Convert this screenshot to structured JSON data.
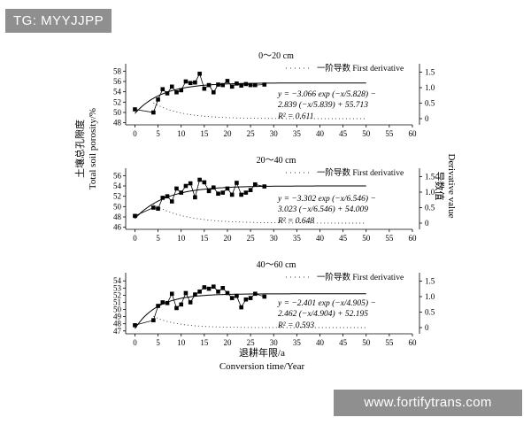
{
  "top_badge": "TG: MYYJJPP",
  "bottom_badge": "www.fortifytrans.com",
  "ylabel_zh": "土壤总孔隙度",
  "ylabel_en": "Total soil porosity/%",
  "y2label_zh": "导数值",
  "y2label_en": "Derivative value",
  "xlabel_zh": "退耕年限/a",
  "xlabel_en": "Conversion time/Year",
  "legend_label": "一阶导数 First derivative",
  "chart_data": [
    {
      "type": "scatter",
      "title": "0～20 cm",
      "xlim": [
        -2,
        60
      ],
      "xticks": [
        0,
        5,
        10,
        15,
        20,
        25,
        30,
        35,
        40,
        45,
        50,
        55,
        60
      ],
      "ylim": [
        47.6,
        58.4
      ],
      "yticks": [
        48,
        50,
        52,
        54,
        56,
        58
      ],
      "y2lim": [
        -0.2,
        1.6
      ],
      "y2ticks": [
        0,
        0.5,
        1.0,
        1.5
      ],
      "y2ticklabels": [
        "0",
        "0.5",
        "1.0",
        "1.5"
      ],
      "points": {
        "x": [
          0,
          4,
          5,
          6,
          7,
          8,
          9,
          10,
          11,
          12,
          13,
          14,
          15,
          16,
          17,
          18,
          19,
          20,
          21,
          22,
          23,
          24,
          25,
          26,
          28
        ],
        "y": [
          50.6,
          50.0,
          52.5,
          54.5,
          53.7,
          55.0,
          53.9,
          54.3,
          56.0,
          55.7,
          55.8,
          57.5,
          54.6,
          55.3,
          53.9,
          55.4,
          55.3,
          56.1,
          55.0,
          55.6,
          55.2,
          55.5,
          55.3,
          55.3,
          55.4
        ]
      },
      "fit": {
        "a": -3.066,
        "t1": 5.828,
        "b": -2.839,
        "t2": 5.839,
        "c": 55.713,
        "x_end": 50
      },
      "derivative": {
        "x": [
          4,
          50
        ],
        "scale": 6.0
      },
      "equation": [
        "y = −3.066 exp (−x/5.828) −",
        "2.839 (−x/5.839) + 55.713"
      ],
      "r2": "R² = 0.611"
    },
    {
      "type": "scatter",
      "title": "20～40 cm",
      "xlim": [
        -2,
        60
      ],
      "xticks": [
        0,
        5,
        10,
        15,
        20,
        25,
        30,
        35,
        40,
        45,
        50,
        55,
        60
      ],
      "ylim": [
        45.6,
        56.4
      ],
      "yticks": [
        46,
        48,
        50,
        52,
        54,
        56
      ],
      "y2lim": [
        -0.2,
        1.6
      ],
      "y2ticks": [
        0,
        0.5,
        1.0,
        1.5
      ],
      "y2ticklabels": [
        "0",
        "0.5",
        "1.0",
        "1.5"
      ],
      "points": {
        "x": [
          0,
          4,
          5,
          6,
          7,
          8,
          9,
          10,
          11,
          12,
          13,
          14,
          15,
          16,
          17,
          18,
          19,
          20,
          21,
          22,
          23,
          24,
          25,
          26,
          28
        ],
        "y": [
          48.2,
          49.8,
          49.6,
          51.7,
          52.0,
          51.0,
          53.5,
          52.7,
          54.0,
          54.5,
          51.8,
          55.2,
          54.7,
          53.0,
          53.7,
          52.5,
          52.7,
          53.5,
          52.3,
          54.6,
          52.3,
          52.7,
          53.2,
          54.3,
          53.9
        ]
      },
      "fit": {
        "a": -3.302,
        "t1": 6.546,
        "b": -3.023,
        "t2": 6.546,
        "c": 54.009,
        "x_end": 50
      },
      "derivative": {
        "x": [
          4,
          50
        ],
        "scale": 7.0
      },
      "equation": [
        "y = −3.302 exp (−x/6.546) −",
        "3.023 (−x/6.546) + 54.009"
      ],
      "r2": "R² = 0.648"
    },
    {
      "type": "scatter",
      "title": "40～60 cm",
      "xlim": [
        -2,
        60
      ],
      "xticks": [
        0,
        5,
        10,
        15,
        20,
        25,
        30,
        35,
        40,
        45,
        50,
        55,
        60
      ],
      "ylim": [
        46.6,
        54.4
      ],
      "yticks": [
        47,
        48,
        49,
        50,
        51,
        52,
        53,
        54
      ],
      "y2lim": [
        -0.2,
        1.6
      ],
      "y2ticks": [
        0,
        0.5,
        1.0,
        1.5
      ],
      "y2ticklabels": [
        "0",
        "0.5",
        "1.0",
        "1.5"
      ],
      "points": {
        "x": [
          0,
          4,
          5,
          6,
          7,
          8,
          9,
          10,
          11,
          12,
          13,
          14,
          15,
          16,
          17,
          18,
          19,
          20,
          21,
          22,
          23,
          24,
          25,
          26,
          28
        ],
        "y": [
          47.8,
          48.5,
          50.5,
          51.0,
          50.9,
          52.2,
          50.2,
          50.7,
          52.3,
          51.0,
          52.1,
          52.5,
          53.1,
          52.9,
          53.2,
          52.5,
          53.0,
          52.3,
          51.6,
          51.9,
          50.3,
          51.4,
          51.6,
          52.2,
          51.8
        ]
      },
      "fit": {
        "a": -2.401,
        "t1": 4.905,
        "b": -2.462,
        "t2": 4.904,
        "c": 52.195,
        "x_end": 50
      },
      "derivative": {
        "x": [
          4,
          50
        ],
        "scale": 5.0
      },
      "equation": [
        "y = −2.401 exp (−x/4.905) −",
        "2.462 (−x/4.904) + 52.195"
      ],
      "r2": "R² = 0.593"
    }
  ]
}
